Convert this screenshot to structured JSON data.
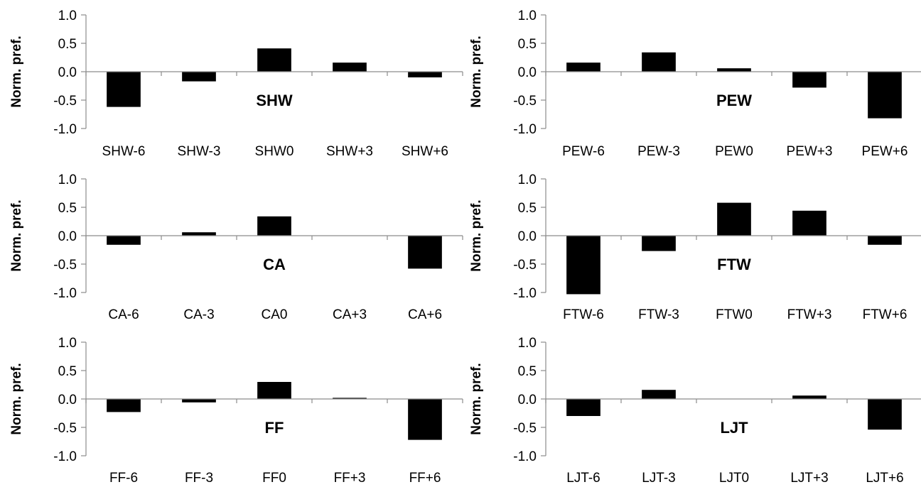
{
  "chart_data": [
    {
      "type": "bar",
      "title": "SHW",
      "ylabel": "Norm. pref.",
      "categories": [
        "SHW-6",
        "SHW-3",
        "SHW0",
        "SHW+3",
        "SHW+6"
      ],
      "values": [
        -0.62,
        -0.17,
        0.41,
        0.16,
        -0.1
      ],
      "ylim": [
        -1.0,
        1.0
      ],
      "yticks": [
        "1.0",
        "0.5",
        "0.0",
        "-0.5",
        "-1.0"
      ],
      "grid": false,
      "legend": "none",
      "bar_color": "#000000"
    },
    {
      "type": "bar",
      "title": "PEW",
      "ylabel": "Norm. pref.",
      "categories": [
        "PEW-6",
        "PEW-3",
        "PEW0",
        "PEW+3",
        "PEW+6"
      ],
      "values": [
        0.16,
        0.34,
        0.06,
        -0.28,
        -0.82
      ],
      "ylim": [
        -1.0,
        1.0
      ],
      "yticks": [
        "1.0",
        "0.5",
        "0.0",
        "-0.5",
        "-1.0"
      ],
      "grid": false,
      "legend": "none",
      "bar_color": "#000000"
    },
    {
      "type": "bar",
      "title": "CA",
      "ylabel": "Norm. pref.",
      "categories": [
        "CA-6",
        "CA-3",
        "CA0",
        "CA+3",
        "CA+6"
      ],
      "values": [
        -0.16,
        0.06,
        0.34,
        0.0,
        -0.58
      ],
      "ylim": [
        -1.0,
        1.0
      ],
      "yticks": [
        "1.0",
        "0.5",
        "0.0",
        "-0.5",
        "-1.0"
      ],
      "grid": false,
      "legend": "none",
      "bar_color": "#000000"
    },
    {
      "type": "bar",
      "title": "FTW",
      "ylabel": "Norm. pref.",
      "categories": [
        "FTW-6",
        "FTW-3",
        "FTW0",
        "FTW+3",
        "FTW+6"
      ],
      "values": [
        -1.03,
        -0.27,
        0.58,
        0.44,
        -0.16
      ],
      "ylim": [
        -1.0,
        1.0
      ],
      "yticks": [
        "1.0",
        "0.5",
        "0.0",
        "-0.5",
        "-1.0"
      ],
      "grid": false,
      "legend": "none",
      "bar_color": "#000000"
    },
    {
      "type": "bar",
      "title": "FF",
      "ylabel": "Norm. pref.",
      "categories": [
        "FF-6",
        "FF-3",
        "FF0",
        "FF+3",
        "FF+6"
      ],
      "values": [
        -0.23,
        -0.06,
        0.3,
        0.02,
        -0.72
      ],
      "ylim": [
        -1.0,
        1.0
      ],
      "yticks": [
        "1.0",
        "0.5",
        "0.0",
        "-0.5",
        "-1.0"
      ],
      "grid": false,
      "legend": "none",
      "bar_color": "#000000"
    },
    {
      "type": "bar",
      "title": "LJT",
      "ylabel": "Norm. pref.",
      "categories": [
        "LJT-6",
        "LJT-3",
        "LJT0",
        "LJT+3",
        "LJT+6"
      ],
      "values": [
        -0.3,
        0.16,
        0.0,
        0.06,
        -0.54
      ],
      "ylim": [
        -1.0,
        1.0
      ],
      "yticks": [
        "1.0",
        "0.5",
        "0.0",
        "-0.5",
        "-1.0"
      ],
      "grid": false,
      "legend": "none",
      "bar_color": "#000000"
    }
  ]
}
